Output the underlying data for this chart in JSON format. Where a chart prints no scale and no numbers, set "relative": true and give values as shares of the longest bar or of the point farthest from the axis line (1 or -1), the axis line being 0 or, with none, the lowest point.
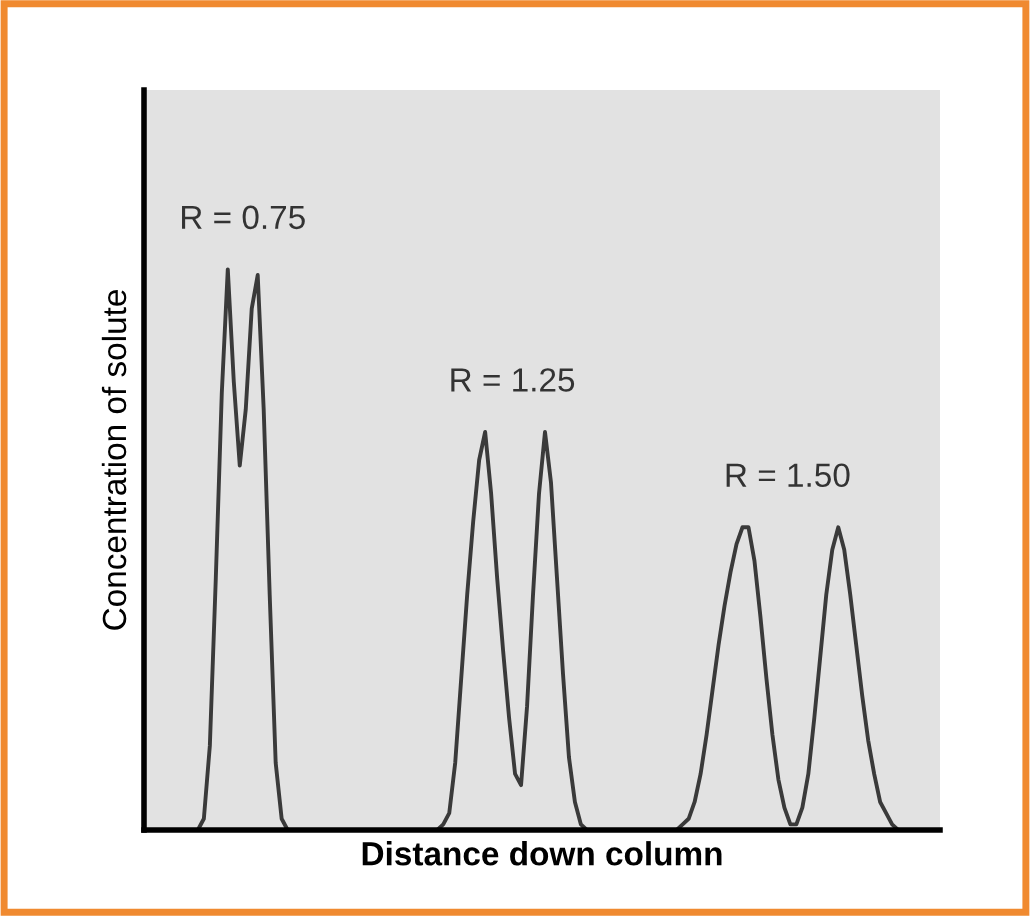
{
  "chart_data": {
    "type": "line",
    "relative": true,
    "xlabel": "Distance down column",
    "ylabel": "Concentration of solute",
    "categories": [
      null,
      null,
      null,
      null,
      null,
      null,
      null,
      null,
      null,
      null,
      null,
      null,
      null,
      null,
      null,
      null,
      null,
      null,
      null,
      null,
      null,
      null,
      null,
      null,
      null,
      null,
      null,
      null,
      null,
      null,
      null,
      null,
      null,
      null,
      null,
      null,
      null,
      null,
      null,
      null,
      null,
      null,
      null,
      null,
      null,
      null,
      null,
      null,
      null,
      null,
      null,
      null,
      null,
      null,
      null,
      null,
      null,
      null,
      null,
      null,
      null,
      null,
      null,
      null,
      null,
      null,
      null,
      null,
      null,
      null,
      null,
      null,
      null,
      null,
      null,
      null,
      null,
      null,
      null,
      null,
      null,
      null,
      null,
      null,
      null,
      null,
      null,
      null,
      null,
      null,
      null,
      null,
      null,
      null,
      null,
      null,
      null,
      null,
      null,
      null,
      null,
      null,
      null,
      null,
      null,
      null,
      null,
      null,
      null,
      null,
      null,
      null,
      null,
      null,
      null,
      null,
      null,
      null,
      null,
      null,
      null,
      null,
      null,
      null,
      null,
      null,
      null,
      null,
      null,
      null,
      null,
      null,
      null,
      null
    ],
    "series": [
      {
        "color": "#3a3a3a",
        "values": [
          0,
          0,
          0,
          0,
          0,
          0,
          0,
          0,
          0,
          0,
          0.02,
          0.15,
          0.45,
          0.78,
          1.0,
          0.8,
          0.65,
          0.75,
          0.93,
          0.99,
          0.75,
          0.42,
          0.12,
          0.02,
          0,
          0,
          0,
          0,
          0,
          0,
          0,
          0,
          0,
          0,
          0,
          0,
          0,
          0,
          0,
          0,
          0,
          0,
          0,
          0,
          0,
          0,
          0,
          0,
          0,
          0,
          0.01,
          0.03,
          0.12,
          0.27,
          0.42,
          0.55,
          0.66,
          0.71,
          0.6,
          0.45,
          0.32,
          0.2,
          0.1,
          0.08,
          0.22,
          0.42,
          0.6,
          0.71,
          0.62,
          0.45,
          0.28,
          0.13,
          0.05,
          0.01,
          0,
          0,
          0,
          0,
          0,
          0,
          0,
          0,
          0,
          0,
          0,
          0,
          0,
          0,
          0,
          0,
          0.01,
          0.02,
          0.05,
          0.1,
          0.17,
          0.25,
          0.33,
          0.4,
          0.46,
          0.51,
          0.54,
          0.54,
          0.48,
          0.38,
          0.27,
          0.17,
          0.09,
          0.04,
          0.01,
          0.01,
          0.04,
          0.1,
          0.2,
          0.31,
          0.42,
          0.5,
          0.54,
          0.5,
          0.42,
          0.33,
          0.24,
          0.16,
          0.1,
          0.05,
          0.03,
          0.01,
          0,
          0,
          0,
          0,
          0,
          0,
          0,
          0
        ]
      }
    ],
    "annotations": [
      "R = 0.75",
      "R = 1.25",
      "R = 1.50"
    ],
    "legend": false,
    "marker": "none",
    "line_style": "solid"
  }
}
